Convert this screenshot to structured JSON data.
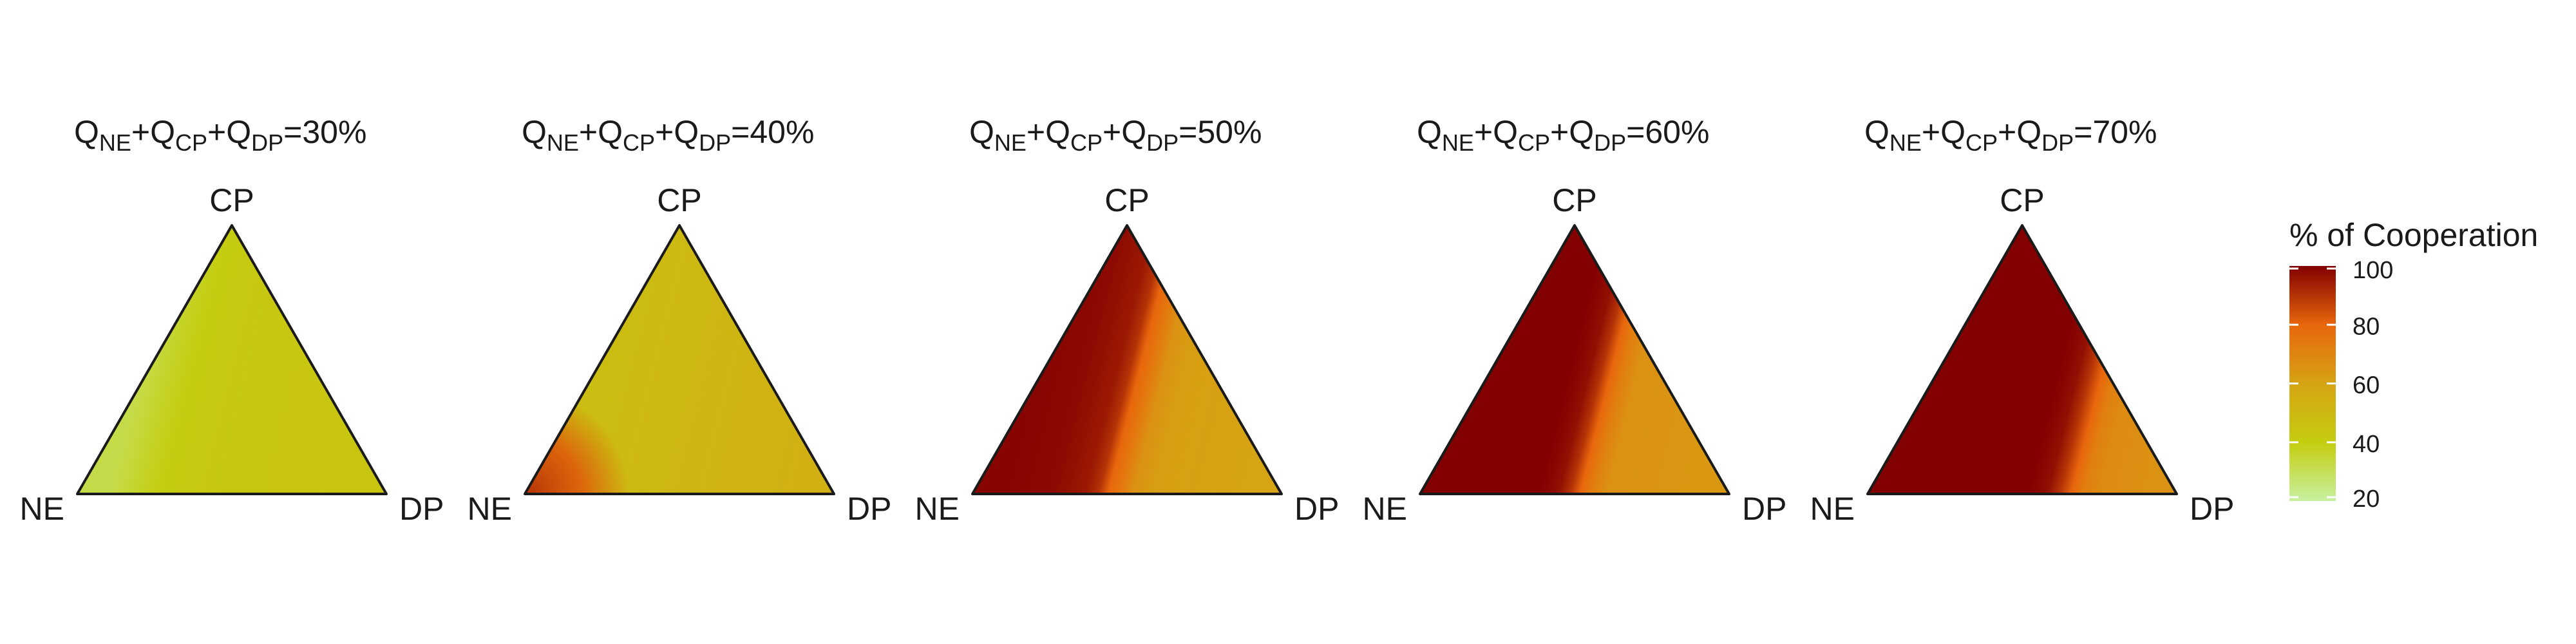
{
  "chart_data": [
    {
      "type": "heatmap",
      "title_parts": [
        "Q",
        "NE",
        "+Q",
        "CP",
        "+Q",
        "DP",
        "=30%"
      ],
      "vertices": {
        "top": "CP",
        "left": "NE",
        "right": "DP"
      },
      "cooperation_profile": [
        [
          0,
          32
        ],
        [
          0.2,
          40
        ],
        [
          0.45,
          43
        ],
        [
          1,
          44
        ]
      ]
    },
    {
      "type": "heatmap",
      "title_parts": [
        "Q",
        "NE",
        "+Q",
        "CP",
        "+Q",
        "DP",
        "=40%"
      ],
      "vertices": {
        "top": "CP",
        "left": "NE",
        "right": "DP"
      },
      "cooperation_profile": [
        [
          0,
          48
        ],
        [
          0.3,
          50
        ],
        [
          1,
          54
        ]
      ],
      "corner_patch": {
        "vertex": "NE",
        "value": 82,
        "extent": 0.28
      }
    },
    {
      "type": "heatmap",
      "title_parts": [
        "Q",
        "NE",
        "+Q",
        "CP",
        "+Q",
        "DP",
        "=50%"
      ],
      "vertices": {
        "top": "CP",
        "left": "NE",
        "right": "DP"
      },
      "cooperation_profile": [
        [
          0,
          99
        ],
        [
          0.2,
          98
        ],
        [
          0.33,
          95
        ],
        [
          0.38,
          90
        ],
        [
          0.42,
          80
        ],
        [
          0.47,
          74
        ],
        [
          0.52,
          66
        ],
        [
          0.6,
          62
        ],
        [
          1,
          60
        ]
      ]
    },
    {
      "type": "heatmap",
      "title_parts": [
        "Q",
        "NE",
        "+Q",
        "CP",
        "+Q",
        "DP",
        "=60%"
      ],
      "vertices": {
        "top": "CP",
        "left": "NE",
        "right": "DP"
      },
      "cooperation_profile": [
        [
          0,
          100
        ],
        [
          0.35,
          100
        ],
        [
          0.43,
          97
        ],
        [
          0.48,
          90
        ],
        [
          0.52,
          80
        ],
        [
          0.57,
          72
        ],
        [
          0.63,
          66
        ],
        [
          1,
          64
        ]
      ]
    },
    {
      "type": "heatmap",
      "title_parts": [
        "Q",
        "NE",
        "+Q",
        "CP",
        "+Q",
        "DP",
        "=70%"
      ],
      "vertices": {
        "top": "CP",
        "left": "NE",
        "right": "DP"
      },
      "cooperation_profile": [
        [
          0,
          100
        ],
        [
          0.52,
          100
        ],
        [
          0.6,
          97
        ],
        [
          0.65,
          90
        ],
        [
          0.7,
          80
        ],
        [
          0.75,
          72
        ],
        [
          0.82,
          68
        ],
        [
          1,
          66
        ]
      ]
    }
  ],
  "legend": {
    "title": "% of Cooperation",
    "min": 20,
    "max": 100,
    "ticks": [
      20,
      40,
      60,
      80,
      100
    ],
    "colormap": [
      [
        20,
        "#c8f0a0"
      ],
      [
        40,
        "#c4cd0f"
      ],
      [
        60,
        "#d6a414"
      ],
      [
        80,
        "#e8660c"
      ],
      [
        100,
        "#820000"
      ]
    ]
  }
}
